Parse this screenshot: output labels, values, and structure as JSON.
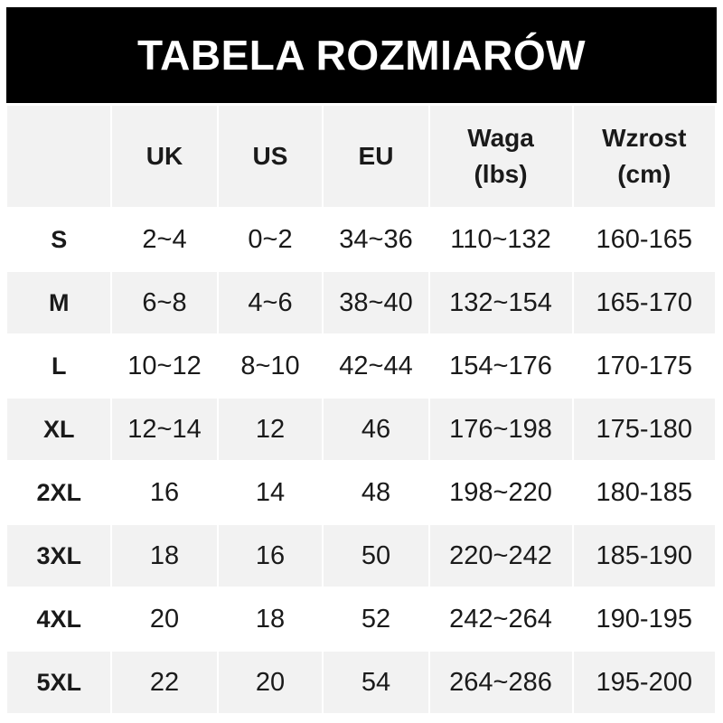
{
  "title": "TABELA ROZMIARÓW",
  "headers": [
    "",
    "UK",
    "US",
    "EU",
    "Waga\n(lbs)",
    "Wzrost\n(cm)"
  ],
  "header_lines": {
    "waga": [
      "Waga",
      "(lbs)"
    ],
    "wzrost": [
      "Wzrost",
      "(cm)"
    ]
  },
  "rows": [
    [
      "S",
      "2~4",
      "0~2",
      "34~36",
      "110~132",
      "160-165"
    ],
    [
      "M",
      "6~8",
      "4~6",
      "38~40",
      "132~154",
      "165-170"
    ],
    [
      "L",
      "10~12",
      "8~10",
      "42~44",
      "154~176",
      "170-175"
    ],
    [
      "XL",
      "12~14",
      "12",
      "46",
      "176~198",
      "175-180"
    ],
    [
      "2XL",
      "16",
      "14",
      "48",
      "198~220",
      "180-185"
    ],
    [
      "3XL",
      "18",
      "16",
      "50",
      "220~242",
      "185-190"
    ],
    [
      "4XL",
      "20",
      "18",
      "52",
      "242~264",
      "190-195"
    ],
    [
      "5XL",
      "22",
      "20",
      "54",
      "264~286",
      "195-200"
    ]
  ],
  "colors": {
    "title_bg": "#000000",
    "title_text": "#ffffff",
    "stripe": "#f2f2f2"
  }
}
